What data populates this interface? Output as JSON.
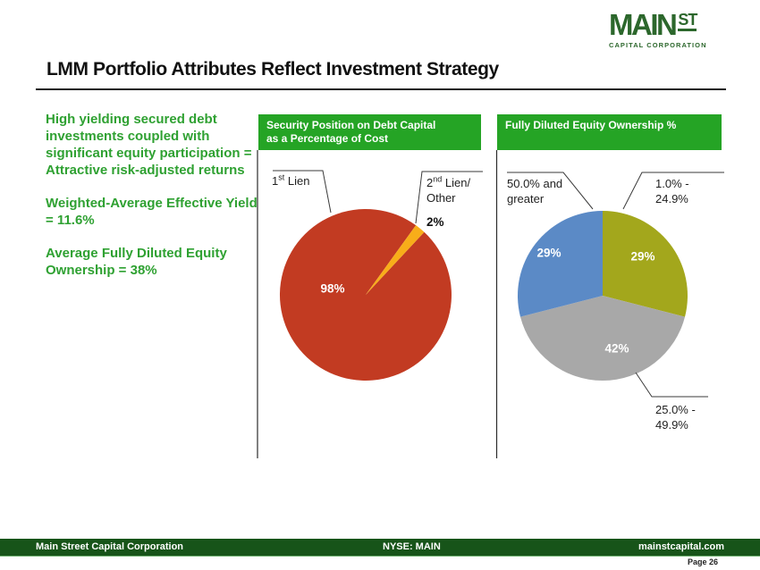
{
  "logo": {
    "main": "MAIN",
    "st": "ST",
    "sub": "CAPITAL CORPORATION"
  },
  "title": "LMM Portfolio Attributes Reflect Investment Strategy",
  "bullets": {
    "p1": "High yielding secured debt investments coupled with significant equity participation = Attractive risk-adjusted returns",
    "p2": "Weighted-Average Effective Yield = 11.6%",
    "p3": "Average Fully Diluted Equity Ownership = 38%"
  },
  "headers": {
    "chart1_line1": "Security Position on Debt Capital",
    "chart1_line2": "as a Percentage of Cost",
    "chart2": "Fully Diluted Equity Ownership %"
  },
  "chart_data": [
    {
      "type": "pie",
      "title": "Security Position on Debt Capital as a Percentage of Cost",
      "start_angle": 43,
      "slices": [
        {
          "label": "1st Lien",
          "value": 98,
          "pct_label": "98%",
          "color": "#c23b22"
        },
        {
          "label": "2nd Lien/Other",
          "value": 2,
          "pct_label": "2%",
          "color": "#f8ad19"
        }
      ],
      "legend_position": "callout-labels"
    },
    {
      "type": "pie",
      "title": "Fully Diluted Equity Ownership %",
      "start_angle": 0,
      "slices": [
        {
          "label": "1.0% - 24.9%",
          "value": 29,
          "pct_label": "29%",
          "color": "#a3a71c"
        },
        {
          "label": "25.0% - 49.9%",
          "value": 42,
          "pct_label": "42%",
          "color": "#a8a8a8"
        },
        {
          "label": "50.0% and greater",
          "value": 29,
          "pct_label": "29%",
          "color": "#5b8ac6"
        }
      ],
      "legend_position": "callout-labels"
    }
  ],
  "callouts": {
    "lien1_num": "1",
    "lien1_sup": "st",
    "lien1_rest": " Lien",
    "lien2_num": "2",
    "lien2_sup": "nd",
    "lien2_rest": " Lien/",
    "lien2_line2": "Other",
    "c2_tl_1": "50.0% and",
    "c2_tl_2": "greater",
    "c2_tr_1": "1.0% -",
    "c2_tr_2": "24.9%",
    "c2_br_1": "25.0% -",
    "c2_br_2": "49.9%"
  },
  "footer": {
    "left": "Main Street Capital Corporation",
    "center": "NYSE: MAIN",
    "right": "mainstcapital.com",
    "page": "Page 26"
  }
}
